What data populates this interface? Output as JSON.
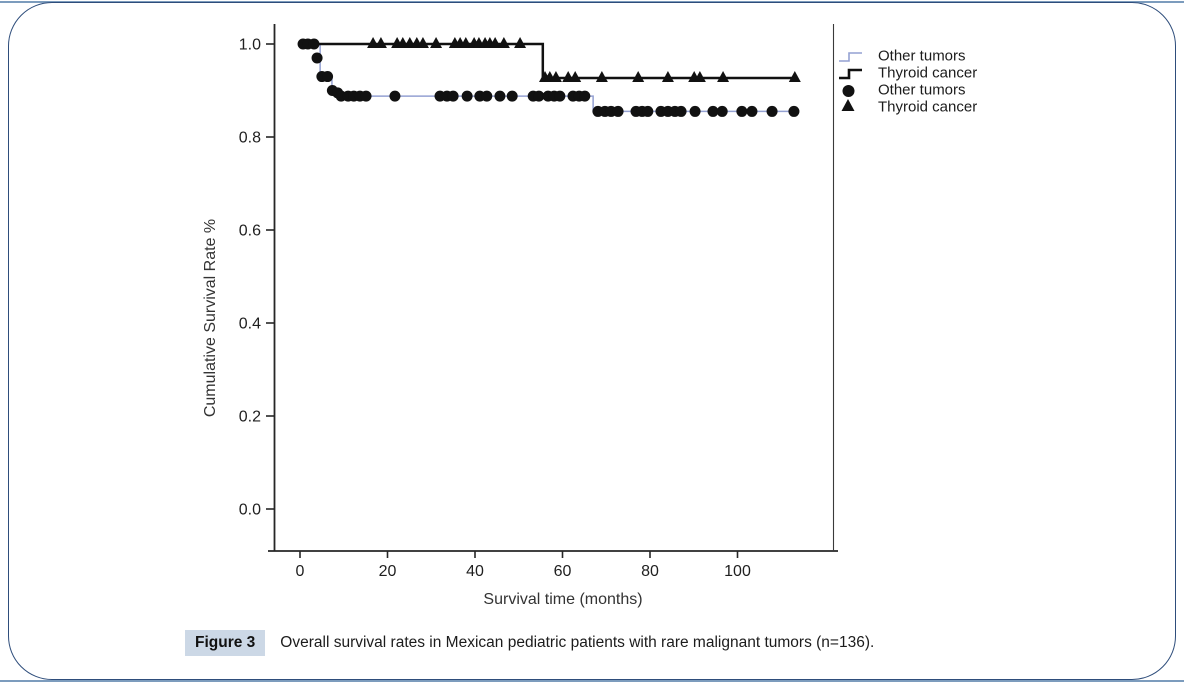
{
  "figure": {
    "caption_label": "Figure 3",
    "caption_text": "Overall survival rates in Mexican pediatric patients with rare malignant tumors (n=136)."
  },
  "chart": {
    "ylabel": "Cumulative Survival Rate %",
    "xlabel": "Survival time (months)",
    "y_tick_labels": [
      "1.0",
      "0.8",
      "0.6",
      "0.4",
      "0.2",
      "0.0"
    ],
    "x_tick_labels": [
      "0",
      "20",
      "40",
      "60",
      "80",
      "100"
    ],
    "legend": [
      {
        "label": "Other tumors",
        "symbol": "step-line",
        "color": "#94a1d2"
      },
      {
        "label": "Thyroid cancer",
        "symbol": "step-line",
        "color": "#111111"
      },
      {
        "label": "Other tumors",
        "symbol": "circle",
        "color": "#111111"
      },
      {
        "label": "Thyroid cancer",
        "symbol": "triangle",
        "color": "#111111"
      }
    ]
  },
  "chart_data": {
    "type": "line",
    "subtype": "kaplan-meier-step",
    "title": "",
    "xlabel": "Survival time (months)",
    "ylabel": "Cumulative Survival Rate %",
    "xlim": [
      -7,
      122
    ],
    "ylim": [
      -0.09,
      1.04
    ],
    "x_ticks": [
      0,
      20,
      40,
      60,
      80,
      100
    ],
    "y_ticks": [
      1.0,
      0.8,
      0.6,
      0.4,
      0.2,
      0.0
    ],
    "grid": false,
    "legend_position": "outside-top-right",
    "series": [
      {
        "name": "Other tumors",
        "color": "#94a1d2",
        "line_width": 1.5,
        "censor_marker": "circle",
        "steps": [
          [
            0,
            1.0
          ],
          [
            4.6,
            1.0
          ],
          [
            4.6,
            0.93
          ],
          [
            7.3,
            0.93
          ],
          [
            7.3,
            0.9
          ],
          [
            8.9,
            0.9
          ],
          [
            8.9,
            0.888
          ],
          [
            67.0,
            0.888
          ],
          [
            67.0,
            0.855
          ],
          [
            112.9,
            0.855
          ]
        ],
        "censored": [
          [
            0.7,
            1.0
          ],
          [
            1.8,
            1.0
          ],
          [
            3.2,
            1.0
          ],
          [
            3.9,
            0.97
          ],
          [
            5.0,
            0.93
          ],
          [
            6.3,
            0.93
          ],
          [
            7.4,
            0.9
          ],
          [
            8.6,
            0.895
          ],
          [
            9.4,
            0.888
          ],
          [
            11.0,
            0.888
          ],
          [
            12.3,
            0.888
          ],
          [
            13.7,
            0.888
          ],
          [
            15.1,
            0.888
          ],
          [
            21.7,
            0.888
          ],
          [
            32.0,
            0.888
          ],
          [
            33.6,
            0.888
          ],
          [
            35.0,
            0.888
          ],
          [
            38.2,
            0.888
          ],
          [
            41.1,
            0.888
          ],
          [
            42.7,
            0.888
          ],
          [
            45.7,
            0.888
          ],
          [
            48.5,
            0.888
          ],
          [
            53.3,
            0.888
          ],
          [
            54.6,
            0.888
          ],
          [
            56.7,
            0.888
          ],
          [
            58.1,
            0.888
          ],
          [
            59.4,
            0.888
          ],
          [
            62.4,
            0.888
          ],
          [
            63.8,
            0.888
          ],
          [
            65.1,
            0.888
          ],
          [
            68.1,
            0.855
          ],
          [
            69.7,
            0.855
          ],
          [
            71.1,
            0.855
          ],
          [
            72.7,
            0.855
          ],
          [
            76.8,
            0.855
          ],
          [
            78.2,
            0.855
          ],
          [
            79.5,
            0.855
          ],
          [
            82.5,
            0.855
          ],
          [
            84.1,
            0.855
          ],
          [
            85.7,
            0.855
          ],
          [
            87.1,
            0.855
          ],
          [
            90.3,
            0.855
          ],
          [
            94.4,
            0.855
          ],
          [
            96.5,
            0.855
          ],
          [
            101.0,
            0.855
          ],
          [
            103.3,
            0.855
          ],
          [
            107.9,
            0.855
          ],
          [
            112.9,
            0.855
          ]
        ]
      },
      {
        "name": "Thyroid cancer",
        "color": "#111111",
        "line_width": 2.5,
        "censor_marker": "triangle",
        "steps": [
          [
            0.5,
            1.0
          ],
          [
            55.5,
            1.0
          ],
          [
            55.5,
            0.927
          ],
          [
            113.2,
            0.927
          ]
        ],
        "censored": [
          [
            16.7,
            1.0
          ],
          [
            18.5,
            1.0
          ],
          [
            22.2,
            1.0
          ],
          [
            23.5,
            1.0
          ],
          [
            25.1,
            1.0
          ],
          [
            26.7,
            1.0
          ],
          [
            28.1,
            1.0
          ],
          [
            31.1,
            1.0
          ],
          [
            35.4,
            1.0
          ],
          [
            36.6,
            1.0
          ],
          [
            37.9,
            1.0
          ],
          [
            39.8,
            1.0
          ],
          [
            40.9,
            1.0
          ],
          [
            42.3,
            1.0
          ],
          [
            43.4,
            1.0
          ],
          [
            44.6,
            1.0
          ],
          [
            46.6,
            1.0
          ],
          [
            50.3,
            1.0
          ],
          [
            56.0,
            0.927
          ],
          [
            57.1,
            0.927
          ],
          [
            58.5,
            0.927
          ],
          [
            61.3,
            0.927
          ],
          [
            62.9,
            0.927
          ],
          [
            69.0,
            0.927
          ],
          [
            77.3,
            0.927
          ],
          [
            84.1,
            0.927
          ],
          [
            90.1,
            0.927
          ],
          [
            91.4,
            0.927
          ],
          [
            96.7,
            0.927
          ],
          [
            113.1,
            0.927
          ]
        ]
      }
    ]
  }
}
